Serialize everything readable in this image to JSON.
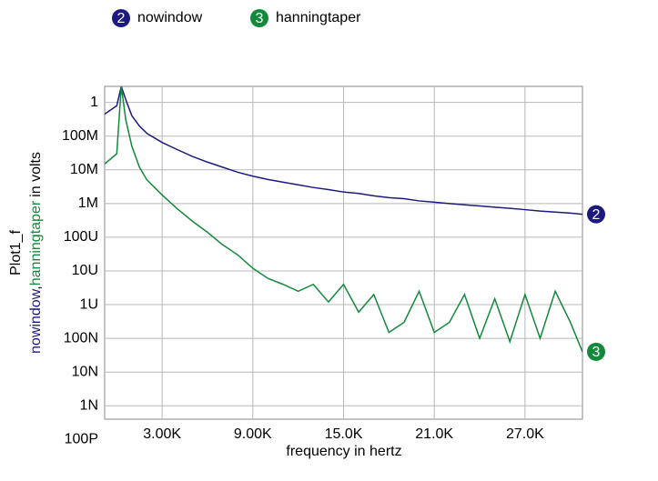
{
  "chart_data": {
    "type": "line",
    "xlabel": "frequency in hertz",
    "ylabel": "Plot1_f",
    "ylabel_separator": ",",
    "ylabel_unit": "in volts",
    "ylog": true,
    "grid": true,
    "x": [
      -800,
      0,
      300,
      600,
      1000,
      1500,
      2000,
      3000,
      4000,
      5000,
      6000,
      7000,
      8000,
      9000,
      10000,
      11000,
      12000,
      13000,
      14000,
      15000,
      16000,
      17000,
      18000,
      19000,
      20000,
      21000,
      22000,
      23000,
      24000,
      25000,
      26000,
      27000,
      28000,
      29000,
      30000,
      30800
    ],
    "series": [
      {
        "name": "nowindow",
        "marker": "2",
        "color": "#1c1a7e",
        "values": [
          0.45,
          0.8,
          3,
          1.2,
          0.4,
          0.2,
          0.12,
          0.065,
          0.04,
          0.025,
          0.017,
          0.012,
          0.0085,
          0.0065,
          0.0052,
          0.0043,
          0.0036,
          0.003,
          0.0026,
          0.0022,
          0.002,
          0.0017,
          0.0015,
          0.0014,
          0.0012,
          0.0011,
          0.001,
          0.00092,
          0.00085,
          0.00078,
          0.00072,
          0.00066,
          0.0006,
          0.00056,
          0.00052,
          0.00048
        ]
      },
      {
        "name": "hanningtaper",
        "marker": "3",
        "color": "#13893b",
        "values": [
          0.015,
          0.03,
          3,
          0.3,
          0.05,
          0.012,
          0.005,
          0.0018,
          0.0007,
          0.0003,
          0.00014,
          6e-05,
          3e-05,
          1.2e-05,
          6e-06,
          4e-06,
          2.5e-06,
          4e-06,
          1.2e-06,
          4e-06,
          6e-07,
          2e-06,
          1.5e-07,
          3e-07,
          2.5e-06,
          1.5e-07,
          3e-07,
          2e-06,
          1e-07,
          1.5e-06,
          8e-08,
          2e-06,
          1e-07,
          2.5e-06,
          3e-07,
          4e-08
        ]
      }
    ],
    "xlim": [
      -800,
      30800
    ],
    "xticks": [
      {
        "value": 3000,
        "label": "3.00K"
      },
      {
        "value": 9000,
        "label": "9.00K"
      },
      {
        "value": 15000,
        "label": "15.0K"
      },
      {
        "value": 21000,
        "label": "21.0K"
      },
      {
        "value": 27000,
        "label": "27.0K"
      }
    ],
    "ylim": [
      4e-10,
      3
    ],
    "yticks": [
      1,
      {
        "value": 0.1,
        "label": "100M"
      },
      {
        "value": 0.01,
        "label": "10M"
      },
      {
        "value": 0.001,
        "label": "1M"
      },
      {
        "value": 0.0001,
        "label": "100U"
      },
      {
        "value": 1e-05,
        "label": "10U"
      },
      {
        "value": 1e-06,
        "label": "1U"
      },
      {
        "value": 1e-07,
        "label": "100N"
      },
      {
        "value": 1e-08,
        "label": "10N"
      },
      {
        "value": 1e-09,
        "label": "1N"
      },
      {
        "value": 1e-10,
        "label": "100P"
      }
    ]
  }
}
